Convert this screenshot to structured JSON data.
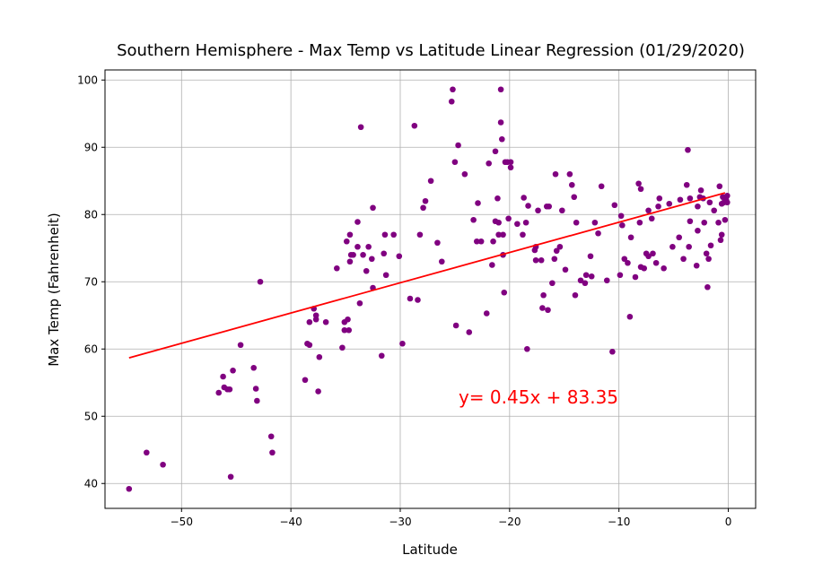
{
  "chart_data": {
    "type": "scatter",
    "title": "Southern Hemisphere - Max Temp vs Latitude Linear Regression (01/29/2020)",
    "xlabel": "Latitude",
    "ylabel": "Max Temp (Fahrenheit)",
    "xlim": [
      -57,
      2.5
    ],
    "ylim": [
      36.3,
      101.5
    ],
    "xticks": [
      -50,
      -40,
      -30,
      -20,
      -10,
      0
    ],
    "yticks": [
      40,
      50,
      60,
      70,
      80,
      90,
      100
    ],
    "grid": true,
    "point_color": "#800080",
    "line_color": "#ff0000",
    "regression": {
      "slope": 0.45,
      "intercept": 83.35,
      "x_range": [
        -54.8,
        -0.3
      ],
      "equation_label": "y= 0.45x + 83.35"
    },
    "points": [
      [
        -54.8,
        39.2
      ],
      [
        -53.2,
        44.6
      ],
      [
        -51.7,
        42.8
      ],
      [
        -46.6,
        53.5
      ],
      [
        -46.2,
        55.9
      ],
      [
        -46.1,
        54.3
      ],
      [
        -45.8,
        54.0
      ],
      [
        -45.6,
        54.0
      ],
      [
        -45.5,
        41.0
      ],
      [
        -45.3,
        56.8
      ],
      [
        -44.6,
        60.6
      ],
      [
        -43.4,
        57.2
      ],
      [
        -43.2,
        54.1
      ],
      [
        -43.1,
        52.3
      ],
      [
        -42.8,
        70.0
      ],
      [
        -41.8,
        47.0
      ],
      [
        -41.7,
        44.6
      ],
      [
        -38.7,
        55.4
      ],
      [
        -38.5,
        60.8
      ],
      [
        -38.3,
        60.6
      ],
      [
        -38.3,
        64.0
      ],
      [
        -37.9,
        66.0
      ],
      [
        -37.7,
        64.4
      ],
      [
        -37.7,
        65.0
      ],
      [
        -37.5,
        53.7
      ],
      [
        -37.4,
        58.8
      ],
      [
        -36.8,
        64.0
      ],
      [
        -35.8,
        72.0
      ],
      [
        -35.3,
        60.2
      ],
      [
        -35.1,
        64.0
      ],
      [
        -35.1,
        62.8
      ],
      [
        -34.9,
        76.0
      ],
      [
        -34.8,
        64.4
      ],
      [
        -34.7,
        62.8
      ],
      [
        -34.6,
        73.0
      ],
      [
        -34.6,
        77.0
      ],
      [
        -34.5,
        74.0
      ],
      [
        -34.3,
        74.0
      ],
      [
        -33.9,
        78.9
      ],
      [
        -33.9,
        75.2
      ],
      [
        -33.7,
        66.8
      ],
      [
        -33.6,
        93.0
      ],
      [
        -33.4,
        74.0
      ],
      [
        -33.1,
        71.6
      ],
      [
        -32.9,
        75.2
      ],
      [
        -32.6,
        73.4
      ],
      [
        -32.5,
        69.1
      ],
      [
        -32.5,
        81.0
      ],
      [
        -31.7,
        59.0
      ],
      [
        -31.5,
        74.2
      ],
      [
        -31.4,
        77.0
      ],
      [
        -31.3,
        71.0
      ],
      [
        -30.6,
        77.0
      ],
      [
        -30.1,
        73.8
      ],
      [
        -29.8,
        60.8
      ],
      [
        -29.1,
        67.5
      ],
      [
        -28.7,
        93.2
      ],
      [
        -28.4,
        67.3
      ],
      [
        -28.2,
        77.0
      ],
      [
        -27.9,
        81.0
      ],
      [
        -27.7,
        82.0
      ],
      [
        -27.2,
        85.0
      ],
      [
        -26.6,
        75.8
      ],
      [
        -26.2,
        73.0
      ],
      [
        -25.3,
        96.8
      ],
      [
        -25.2,
        98.6
      ],
      [
        -25.0,
        87.8
      ],
      [
        -24.9,
        63.5
      ],
      [
        -24.7,
        90.3
      ],
      [
        -24.1,
        86.0
      ],
      [
        -23.7,
        62.5
      ],
      [
        -23.3,
        79.2
      ],
      [
        -23.0,
        76.0
      ],
      [
        -22.9,
        81.7
      ],
      [
        -22.6,
        76.0
      ],
      [
        -22.1,
        65.3
      ],
      [
        -21.9,
        87.6
      ],
      [
        -21.6,
        72.5
      ],
      [
        -21.5,
        76.0
      ],
      [
        -21.3,
        89.4
      ],
      [
        -21.3,
        79.0
      ],
      [
        -21.1,
        82.4
      ],
      [
        -21.0,
        78.8
      ],
      [
        -21.0,
        77.0
      ],
      [
        -20.8,
        98.6
      ],
      [
        -20.8,
        93.7
      ],
      [
        -20.7,
        91.2
      ],
      [
        -20.6,
        74.0
      ],
      [
        -20.6,
        77.0
      ],
      [
        -20.5,
        68.4
      ],
      [
        -20.4,
        87.8
      ],
      [
        -20.2,
        87.8
      ],
      [
        -20.1,
        79.4
      ],
      [
        -19.9,
        87.8
      ],
      [
        -19.9,
        87.0
      ],
      [
        -19.3,
        78.6
      ],
      [
        -18.8,
        77.0
      ],
      [
        -18.7,
        82.5
      ],
      [
        -18.5,
        78.8
      ],
      [
        -18.4,
        60.0
      ],
      [
        -18.3,
        81.3
      ],
      [
        -17.7,
        74.7
      ],
      [
        -17.6,
        75.2
      ],
      [
        -17.6,
        73.2
      ],
      [
        -17.4,
        80.6
      ],
      [
        -17.1,
        73.2
      ],
      [
        -17.0,
        66.1
      ],
      [
        -16.9,
        68.0
      ],
      [
        -16.6,
        81.2
      ],
      [
        -16.5,
        65.8
      ],
      [
        -16.4,
        81.2
      ],
      [
        -16.1,
        69.8
      ],
      [
        -15.9,
        73.4
      ],
      [
        -15.8,
        86.0
      ],
      [
        -15.7,
        74.6
      ],
      [
        -15.4,
        75.2
      ],
      [
        -15.2,
        80.6
      ],
      [
        -14.9,
        71.8
      ],
      [
        -14.5,
        86.0
      ],
      [
        -14.3,
        84.4
      ],
      [
        -14.1,
        82.6
      ],
      [
        -14.0,
        68.0
      ],
      [
        -13.9,
        78.8
      ],
      [
        -13.5,
        70.2
      ],
      [
        -13.1,
        69.8
      ],
      [
        -13.0,
        71.0
      ],
      [
        -12.6,
        73.8
      ],
      [
        -12.5,
        70.8
      ],
      [
        -12.2,
        78.8
      ],
      [
        -11.9,
        77.2
      ],
      [
        -11.6,
        84.2
      ],
      [
        -11.1,
        70.2
      ],
      [
        -10.6,
        59.6
      ],
      [
        -10.4,
        81.4
      ],
      [
        -9.9,
        71.0
      ],
      [
        -9.8,
        79.8
      ],
      [
        -9.7,
        78.4
      ],
      [
        -9.5,
        73.4
      ],
      [
        -9.2,
        72.8
      ],
      [
        -9.0,
        64.8
      ],
      [
        -8.9,
        76.6
      ],
      [
        -8.5,
        70.7
      ],
      [
        -8.2,
        84.6
      ],
      [
        -8.1,
        78.8
      ],
      [
        -8.0,
        72.2
      ],
      [
        -8.0,
        83.8
      ],
      [
        -7.7,
        72.0
      ],
      [
        -7.5,
        74.2
      ],
      [
        -7.3,
        80.6
      ],
      [
        -7.3,
        73.8
      ],
      [
        -7.0,
        79.4
      ],
      [
        -6.9,
        74.2
      ],
      [
        -6.6,
        72.8
      ],
      [
        -6.4,
        81.2
      ],
      [
        -6.3,
        82.4
      ],
      [
        -5.9,
        72.0
      ],
      [
        -5.4,
        81.6
      ],
      [
        -5.1,
        75.2
      ],
      [
        -4.5,
        76.6
      ],
      [
        -4.4,
        82.2
      ],
      [
        -4.1,
        73.4
      ],
      [
        -3.8,
        84.4
      ],
      [
        -3.7,
        89.6
      ],
      [
        -3.6,
        75.2
      ],
      [
        -3.5,
        82.4
      ],
      [
        -3.5,
        79.0
      ],
      [
        -2.9,
        72.4
      ],
      [
        -2.8,
        77.6
      ],
      [
        -2.8,
        81.2
      ],
      [
        -2.6,
        82.6
      ],
      [
        -2.5,
        83.6
      ],
      [
        -2.3,
        82.4
      ],
      [
        -2.2,
        78.8
      ],
      [
        -2.0,
        74.2
      ],
      [
        -1.9,
        69.2
      ],
      [
        -1.8,
        73.4
      ],
      [
        -1.7,
        81.8
      ],
      [
        -1.6,
        75.4
      ],
      [
        -1.3,
        80.6
      ],
      [
        -0.9,
        78.8
      ],
      [
        -0.8,
        84.2
      ],
      [
        -0.7,
        76.2
      ],
      [
        -0.6,
        81.6
      ],
      [
        -0.6,
        77.0
      ],
      [
        -0.5,
        82.6
      ],
      [
        -0.4,
        81.8
      ],
      [
        -0.3,
        79.2
      ],
      [
        -0.2,
        82.2
      ],
      [
        -0.1,
        82.8
      ],
      [
        -0.1,
        81.8
      ]
    ]
  }
}
